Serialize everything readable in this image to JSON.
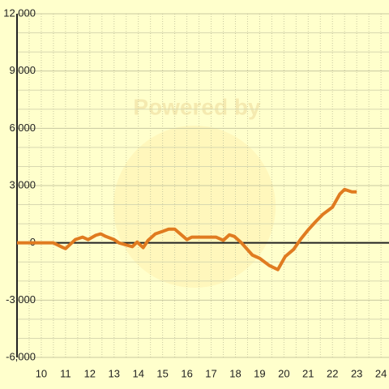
{
  "chart_data": {
    "type": "line",
    "watermark": "Powered by",
    "x": [
      9,
      10.5,
      10.9,
      11,
      11.4,
      11.7,
      11.93,
      12.25,
      12.45,
      12.65,
      13,
      13.2,
      13.75,
      13.95,
      14.2,
      14.4,
      14.7,
      15,
      15.25,
      15.5,
      15.7,
      16,
      16.2,
      16.5,
      17.2,
      17.5,
      17.75,
      17.95,
      18.25,
      18.7,
      19,
      19.4,
      19.75,
      20.05,
      20.4,
      20.7,
      21,
      21.3,
      21.6,
      22,
      22.3,
      22.5,
      22.8,
      23
    ],
    "series": [
      {
        "color": "#e07b20",
        "values": [
          0,
          0,
          -250,
          -300,
          170,
          300,
          170,
          400,
          470,
          340,
          170,
          0,
          -200,
          40,
          -250,
          130,
          470,
          600,
          720,
          720,
          500,
          170,
          300,
          300,
          300,
          130,
          420,
          340,
          0,
          -640,
          -810,
          -1190,
          -1400,
          -720,
          -340,
          210,
          680,
          1100,
          1490,
          1870,
          2550,
          2800,
          2670,
          2670
        ]
      }
    ],
    "xlim": [
      9,
      24.33
    ],
    "xticks": [
      10,
      11,
      12,
      13,
      14,
      15,
      16,
      17,
      18,
      19,
      20,
      21,
      22,
      23,
      24
    ],
    "ylim": [
      -6000,
      12000
    ],
    "yticks": [
      {
        "value": -6000,
        "label": "-6,000"
      },
      {
        "value": -3000,
        "label": "-3,000"
      },
      0,
      {
        "value": 3000,
        "label": "3,000"
      },
      {
        "value": 6000,
        "label": "6,000"
      },
      {
        "value": 9000,
        "label": "9,000"
      },
      {
        "value": 12000,
        "label": "12,000"
      }
    ],
    "grid": true
  }
}
